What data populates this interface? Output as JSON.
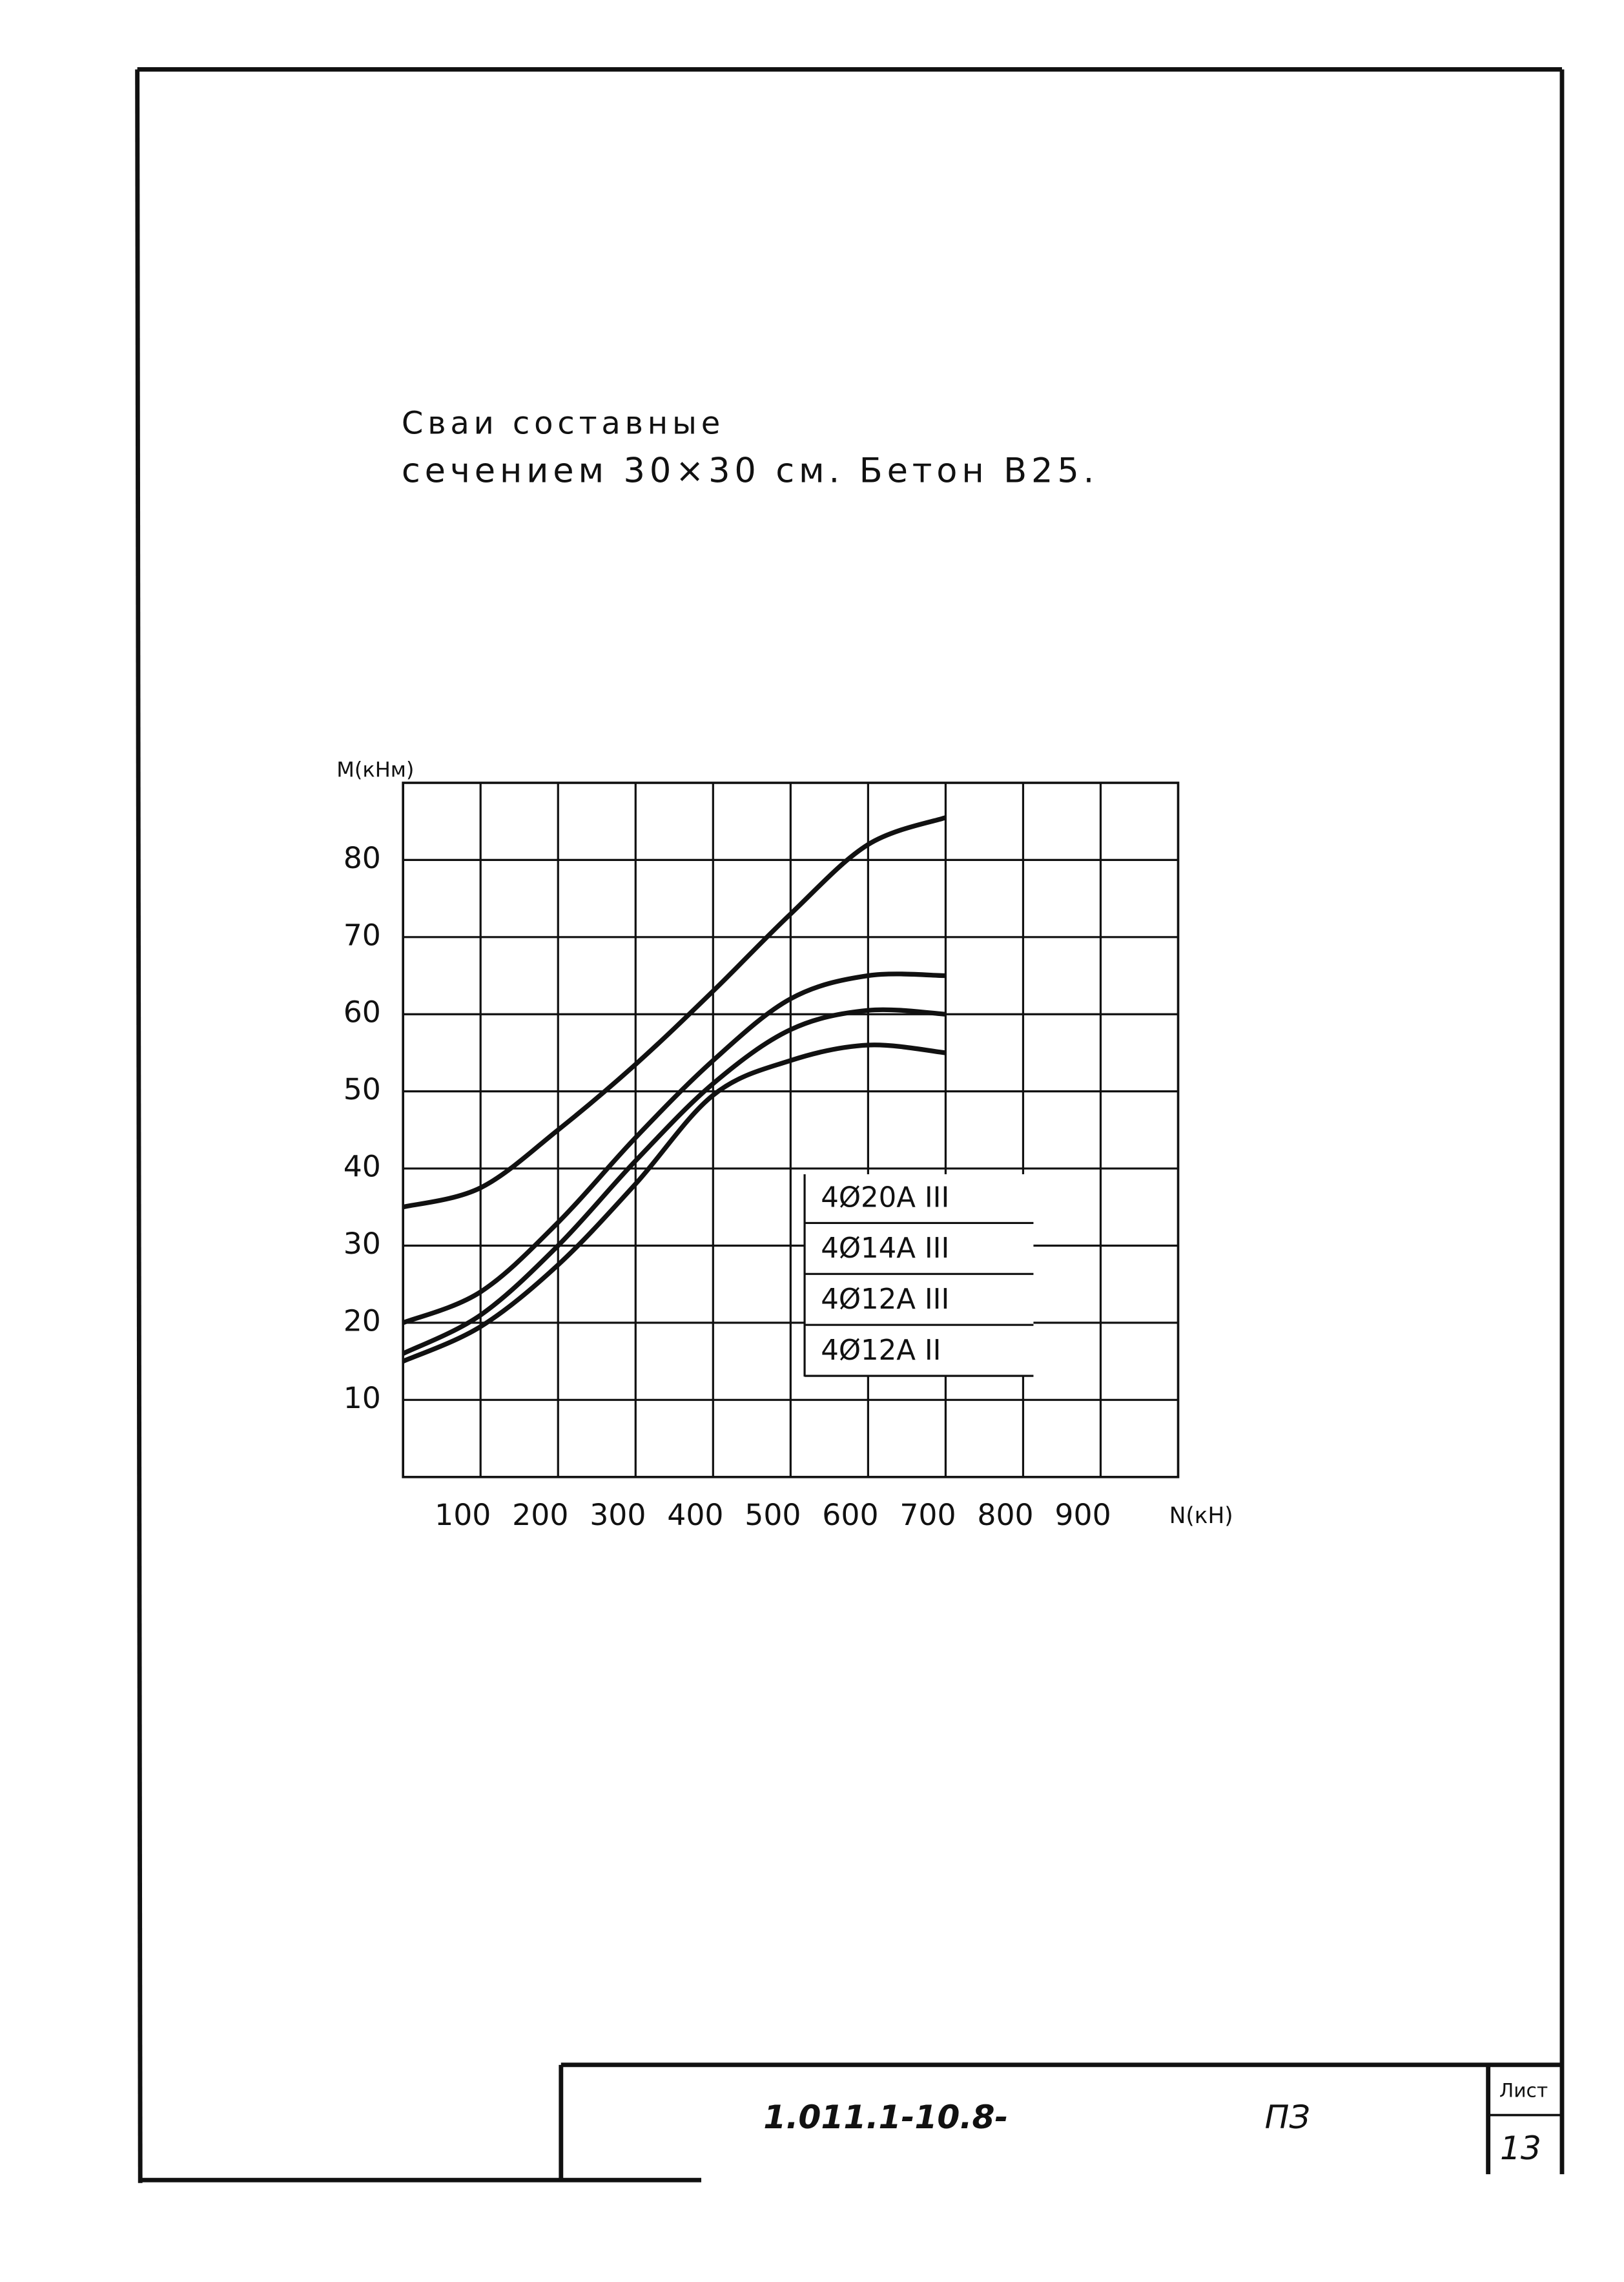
{
  "chart_data": {
    "type": "line",
    "title": "Сваи составные",
    "subtitle": "сечением 30×30 см. Бетон В25.",
    "y_label": "M(кНм)",
    "x_label": "N(кН)",
    "x": [
      0,
      100,
      200,
      300,
      400,
      500,
      600,
      700
    ],
    "xlim": [
      0,
      1000
    ],
    "xticks": [
      100,
      200,
      300,
      400,
      500,
      600,
      700,
      800,
      900
    ],
    "ylim": [
      0,
      90
    ],
    "yticks": [
      10,
      20,
      30,
      40,
      50,
      60,
      70,
      80
    ],
    "grid": true,
    "series": [
      {
        "name": "4Ø20А III",
        "color": "#111111",
        "values": [
          35,
          37.5,
          45,
          53.5,
          63,
          73,
          82,
          85.5
        ]
      },
      {
        "name": "4Ø14А III",
        "color": "#111111",
        "values": [
          20,
          24,
          33,
          44,
          54,
          62,
          65,
          65
        ]
      },
      {
        "name": "4Ø12А III",
        "color": "#111111",
        "values": [
          16,
          21,
          30,
          41,
          51,
          58,
          60.5,
          60
        ]
      },
      {
        "name": "4Ø12А II",
        "color": "#111111",
        "values": [
          15,
          19.5,
          27.5,
          38,
          49.5,
          54,
          56,
          55
        ]
      }
    ]
  },
  "stamp": {
    "code": "1.011.1-10.8-",
    "doc": "ПЗ",
    "sheet_label": "Лист",
    "sheet": "13"
  }
}
